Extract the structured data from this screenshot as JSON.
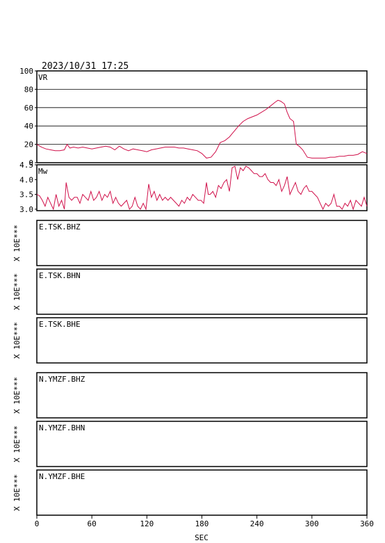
{
  "header": {
    "timestamp": "2023/10/31  17:25"
  },
  "colors": {
    "trace": "#d0104a",
    "axis": "#000000"
  },
  "chart_data": [
    {
      "type": "line",
      "panel": "vr",
      "label": "VR",
      "xlim": [
        0,
        360
      ],
      "ylim": [
        0,
        100
      ],
      "yticks": [
        "100",
        "80",
        "60",
        "40",
        "20",
        "0"
      ],
      "grid": true,
      "x": [
        0,
        5,
        10,
        15,
        20,
        25,
        30,
        33,
        36,
        40,
        45,
        50,
        55,
        60,
        65,
        70,
        75,
        80,
        85,
        90,
        95,
        100,
        105,
        110,
        115,
        120,
        125,
        130,
        135,
        140,
        145,
        150,
        155,
        160,
        165,
        170,
        175,
        180,
        185,
        190,
        195,
        200,
        205,
        210,
        215,
        220,
        225,
        230,
        235,
        240,
        245,
        250,
        255,
        260,
        263,
        266,
        270,
        273,
        276,
        280,
        283,
        286,
        290,
        295,
        300,
        305,
        310,
        315,
        320,
        325,
        330,
        335,
        340,
        345,
        350,
        355,
        360
      ],
      "y": [
        20,
        17,
        15,
        14,
        13,
        13,
        14,
        20,
        16,
        17,
        16,
        17,
        16,
        15,
        16,
        17,
        18,
        17,
        14,
        18,
        15,
        13,
        15,
        14,
        13,
        12,
        14,
        15,
        16,
        17,
        17,
        17,
        16,
        16,
        15,
        14,
        13,
        10,
        5,
        6,
        12,
        22,
        24,
        28,
        34,
        40,
        45,
        48,
        50,
        52,
        55,
        58,
        62,
        66,
        68,
        67,
        64,
        55,
        48,
        45,
        20,
        18,
        14,
        6,
        5,
        5,
        5,
        5,
        6,
        6,
        7,
        7,
        8,
        8,
        9,
        12,
        10
      ]
    },
    {
      "type": "line",
      "panel": "mw",
      "label": "Mw",
      "xlim": [
        0,
        360
      ],
      "ylim": [
        2.95,
        4.5
      ],
      "yticks": [
        "4.5",
        "4.0",
        "3.5",
        "3.0"
      ],
      "grid": false,
      "x": [
        0,
        3,
        6,
        9,
        12,
        15,
        18,
        21,
        24,
        27,
        30,
        32,
        35,
        38,
        41,
        44,
        47,
        50,
        53,
        56,
        59,
        62,
        65,
        68,
        71,
        74,
        77,
        80,
        83,
        86,
        89,
        92,
        95,
        98,
        101,
        104,
        107,
        110,
        113,
        116,
        119,
        122,
        125,
        128,
        131,
        134,
        137,
        140,
        143,
        146,
        149,
        152,
        155,
        158,
        161,
        164,
        167,
        170,
        173,
        176,
        179,
        182,
        185,
        187,
        189,
        192,
        195,
        198,
        201,
        204,
        207,
        210,
        213,
        216,
        219,
        222,
        225,
        228,
        231,
        234,
        237,
        240,
        243,
        246,
        249,
        252,
        255,
        258,
        261,
        264,
        267,
        270,
        273,
        276,
        279,
        282,
        285,
        288,
        291,
        294,
        297,
        300,
        303,
        306,
        309,
        312,
        315,
        318,
        321,
        324,
        327,
        330,
        333,
        336,
        339,
        342,
        345,
        348,
        351,
        354,
        357,
        360
      ],
      "y": [
        3.5,
        3.45,
        3.3,
        3.1,
        3.4,
        3.2,
        3.0,
        3.5,
        3.1,
        3.3,
        3.0,
        3.9,
        3.4,
        3.3,
        3.4,
        3.4,
        3.2,
        3.5,
        3.4,
        3.3,
        3.6,
        3.3,
        3.4,
        3.6,
        3.3,
        3.5,
        3.4,
        3.6,
        3.2,
        3.4,
        3.2,
        3.1,
        3.2,
        3.3,
        3.0,
        3.1,
        3.4,
        3.1,
        3.0,
        3.2,
        3.0,
        3.85,
        3.4,
        3.6,
        3.3,
        3.5,
        3.3,
        3.4,
        3.3,
        3.4,
        3.3,
        3.2,
        3.1,
        3.3,
        3.2,
        3.4,
        3.3,
        3.5,
        3.4,
        3.3,
        3.3,
        3.2,
        3.9,
        3.5,
        3.5,
        3.6,
        3.4,
        3.8,
        3.7,
        3.9,
        4.0,
        3.6,
        4.4,
        4.45,
        4.0,
        4.4,
        4.3,
        4.45,
        4.4,
        4.3,
        4.2,
        4.2,
        4.1,
        4.1,
        4.2,
        4.0,
        3.9,
        3.9,
        3.8,
        4.0,
        3.6,
        3.8,
        4.1,
        3.5,
        3.7,
        3.9,
        3.6,
        3.5,
        3.7,
        3.8,
        3.6,
        3.6,
        3.5,
        3.4,
        3.2,
        3.0,
        3.2,
        3.1,
        3.2,
        3.5,
        3.1,
        3.1,
        3.0,
        3.2,
        3.1,
        3.3,
        3.0,
        3.3,
        3.2,
        3.1,
        3.4,
        3.1
      ]
    }
  ],
  "traces": [
    {
      "label": "E.TSK.BHZ",
      "yunit": "X 10E***"
    },
    {
      "label": "E.TSK.BHN",
      "yunit": "X 10E***"
    },
    {
      "label": "E.TSK.BHE",
      "yunit": "X 10E***"
    },
    {
      "label": "N.YMZF.BHZ",
      "yunit": "X 10E***"
    },
    {
      "label": "N.YMZF.BHN",
      "yunit": "X 10E***"
    },
    {
      "label": "N.YMZF.BHE",
      "yunit": "X 10E***"
    }
  ],
  "xaxis": {
    "label": "SEC",
    "ticks": [
      "0",
      "60",
      "120",
      "180",
      "240",
      "300",
      "360"
    ],
    "values": [
      0,
      60,
      120,
      180,
      240,
      300,
      360
    ]
  }
}
